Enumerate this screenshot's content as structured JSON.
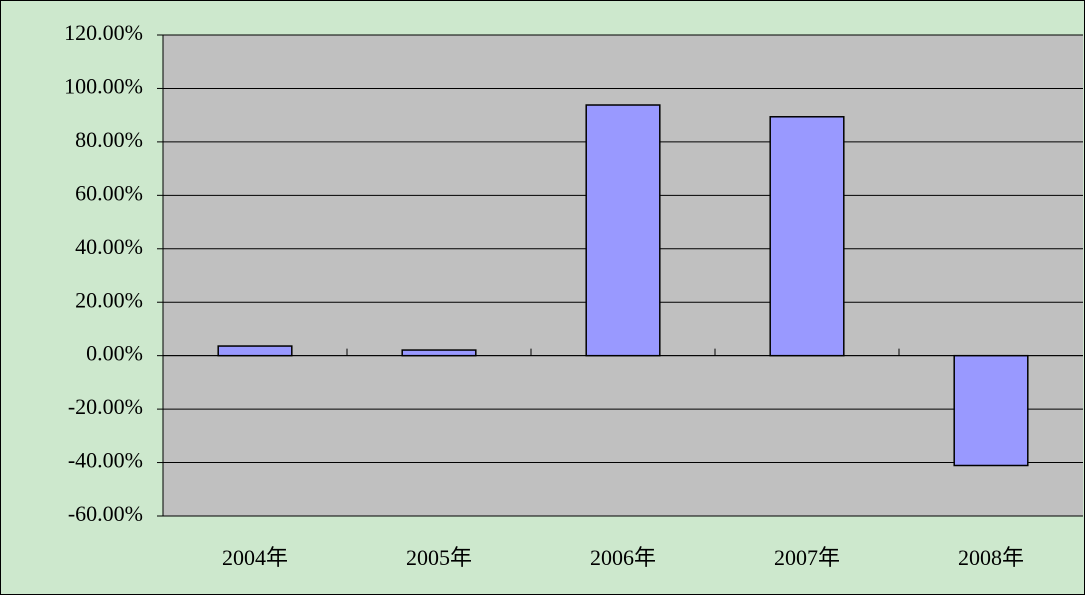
{
  "chart_data": {
    "type": "bar",
    "categories": [
      "2004年",
      "2005年",
      "2006年",
      "2007年",
      "2008年"
    ],
    "values": [
      3.6,
      2.1,
      93.8,
      89.4,
      -41.1
    ],
    "color": "#9999ff",
    "ylim": [
      -60,
      120
    ],
    "yticks": [
      {
        "value": -60,
        "label": "-60.00%"
      },
      {
        "value": -40,
        "label": "-40.00%"
      },
      {
        "value": -20,
        "label": "-20.00%"
      },
      {
        "value": 0,
        "label": "0.00%"
      },
      {
        "value": 20,
        "label": "20.00%"
      },
      {
        "value": 40,
        "label": "40.00%"
      },
      {
        "value": 60,
        "label": "60.00%"
      },
      {
        "value": 80,
        "label": "80.00%"
      },
      {
        "value": 100,
        "label": "100.00%"
      },
      {
        "value": 120,
        "label": "120.00%"
      }
    ],
    "grid": true
  }
}
